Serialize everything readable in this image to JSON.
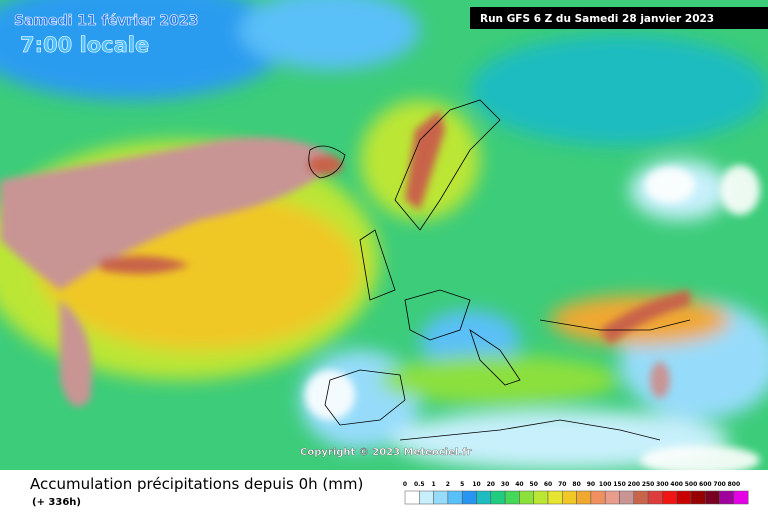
{
  "header": {
    "valid_date": "Samedi 11 février 2023",
    "valid_time": "7:00 locale",
    "run": "Run GFS 6 Z du Samedi 28 janvier 2023"
  },
  "copyright": "Copyright © 2023 Meteociel.fr",
  "footer": {
    "title": "Accumulation précipitations depuis 0h (mm)",
    "lead": "(+ 336h)"
  },
  "legend": [
    {
      "label": "0",
      "color": "#ffffff"
    },
    {
      "label": "0.5",
      "color": "#c8f0fc"
    },
    {
      "label": "1",
      "color": "#96dcfa"
    },
    {
      "label": "2",
      "color": "#5ac0f8"
    },
    {
      "label": "5",
      "color": "#2896f0"
    },
    {
      "label": "10",
      "color": "#1ebcc0"
    },
    {
      "label": "20",
      "color": "#20cc80"
    },
    {
      "label": "30",
      "color": "#46d858"
    },
    {
      "label": "40",
      "color": "#8ce03c"
    },
    {
      "label": "50",
      "color": "#bce634"
    },
    {
      "label": "60",
      "color": "#e6e632"
    },
    {
      "label": "70",
      "color": "#f0c828"
    },
    {
      "label": "80",
      "color": "#f0a830"
    },
    {
      "label": "90",
      "color": "#f09060"
    },
    {
      "label": "100",
      "color": "#e89c8c"
    },
    {
      "label": "150",
      "color": "#c89494"
    },
    {
      "label": "200",
      "color": "#c8644a"
    },
    {
      "label": "250",
      "color": "#dc3c3c"
    },
    {
      "label": "300",
      "color": "#f01414"
    },
    {
      "label": "400",
      "color": "#c80000"
    },
    {
      "label": "500",
      "color": "#960000"
    },
    {
      "label": "600",
      "color": "#780020"
    },
    {
      "label": "700",
      "color": "#a0009c"
    },
    {
      "label": "800",
      "color": "#e600e6"
    }
  ]
}
